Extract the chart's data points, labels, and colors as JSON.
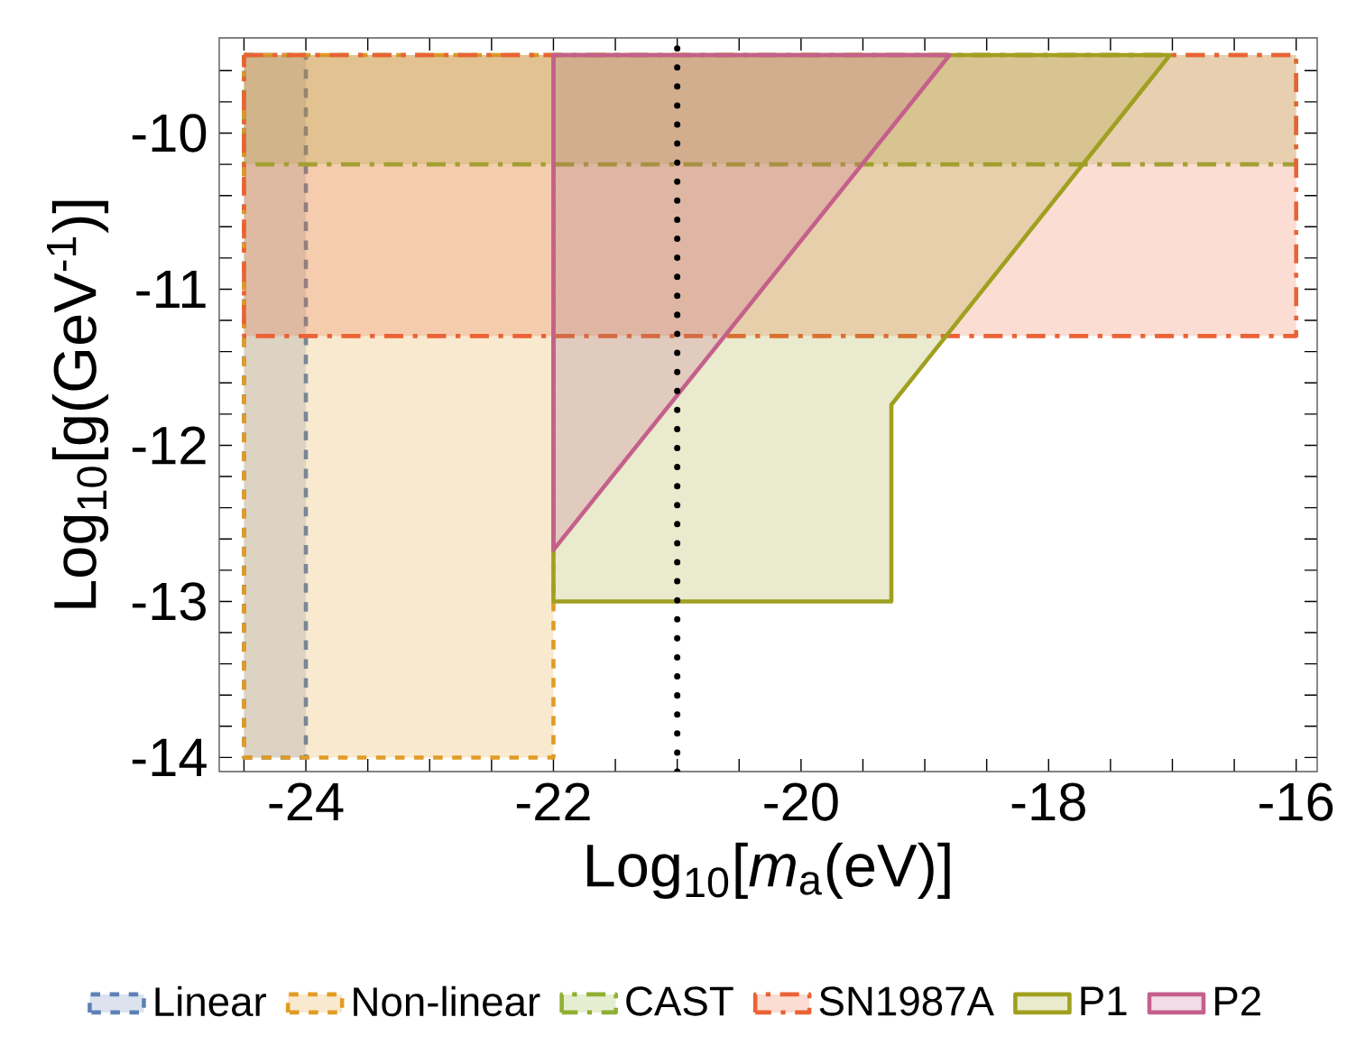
{
  "chart_data": {
    "type": "area",
    "xlabel": "Log$_{10}$[*m*$_{a}$(eV)]",
    "ylabel": "Log$_{10}$[g(GeV$^{-1}$)]",
    "xlim": [
      -24.7,
      -15.83
    ],
    "ylim": [
      -14.09,
      -9.39
    ],
    "xticks": [
      {
        "value": -24.5,
        "label": null
      },
      -24,
      {
        "value": -23.5,
        "label": null
      },
      {
        "value": -23,
        "label": null
      },
      {
        "value": -22.5,
        "label": null
      },
      -22,
      {
        "value": -21.5,
        "label": null
      },
      {
        "value": -21,
        "label": null
      },
      {
        "value": -20.5,
        "label": null
      },
      -20,
      {
        "value": -19.5,
        "label": null
      },
      {
        "value": -19,
        "label": null
      },
      {
        "value": -18.5,
        "label": null
      },
      -18,
      {
        "value": -17.5,
        "label": null
      },
      {
        "value": -17,
        "label": null
      },
      {
        "value": -16.5,
        "label": null
      },
      -16
    ],
    "yticks": [
      -14,
      {
        "value": -13.8,
        "label": null
      },
      {
        "value": -13.6,
        "label": null
      },
      {
        "value": -13.4,
        "label": null
      },
      {
        "value": -13.2,
        "label": null
      },
      -13,
      {
        "value": -12.8,
        "label": null
      },
      {
        "value": -12.6,
        "label": null
      },
      {
        "value": -12.4,
        "label": null
      },
      {
        "value": -12.2,
        "label": null
      },
      -12,
      {
        "value": -11.8,
        "label": null
      },
      {
        "value": -11.6,
        "label": null
      },
      {
        "value": -11.4,
        "label": null
      },
      {
        "value": -11.2,
        "label": null
      },
      -11,
      {
        "value": -10.8,
        "label": null
      },
      {
        "value": -10.6,
        "label": null
      },
      {
        "value": -10.4,
        "label": null
      },
      {
        "value": -10.2,
        "label": null
      },
      -10,
      {
        "value": -9.8,
        "label": null
      },
      {
        "value": -9.6,
        "label": null
      }
    ],
    "legend": "bottom",
    "grid": false,
    "series": [
      {
        "name": "Linear",
        "color": "#5e81b5",
        "line_style": "dashed",
        "x": [
          -24.5,
          -24,
          -24,
          -24.5
        ],
        "values": [
          -9.5,
          -9.5,
          -14,
          -14
        ]
      },
      {
        "name": "Non-linear",
        "color": "#e19c24",
        "line_style": "dashed",
        "x": [
          -24.5,
          -22,
          -22,
          -24.5
        ],
        "values": [
          -9.5,
          -9.5,
          -14,
          -14
        ]
      },
      {
        "name": "CAST",
        "color": "#8fb032",
        "line_style": "dashdot",
        "x": [
          -24.5,
          -16,
          -16,
          -24.5
        ],
        "values": [
          -9.5,
          -9.5,
          -10.2,
          -10.2
        ]
      },
      {
        "name": "SN1987A",
        "color": "#eb6235",
        "line_style": "dashdot",
        "x": [
          -24.5,
          -16,
          -16,
          -24.5
        ],
        "values": [
          -9.5,
          -9.5,
          -11.3,
          -11.3
        ]
      },
      {
        "name": "P1",
        "color": "#a0a020",
        "line_style": "solid",
        "x": [
          -22,
          -17.02,
          -19.27,
          -19.27,
          -22
        ],
        "values": [
          -9.5,
          -9.5,
          -11.74,
          -13,
          -13
        ]
      },
      {
        "name": "P2",
        "color": "#c5608b",
        "line_style": "solid",
        "x": [
          -22,
          -18.8,
          -22
        ],
        "values": [
          -9.5,
          -9.5,
          -12.67
        ]
      }
    ],
    "ref_lines": [
      {
        "axis": "x",
        "value": -21,
        "color": "#000000",
        "line_style": "dotted"
      }
    ]
  }
}
